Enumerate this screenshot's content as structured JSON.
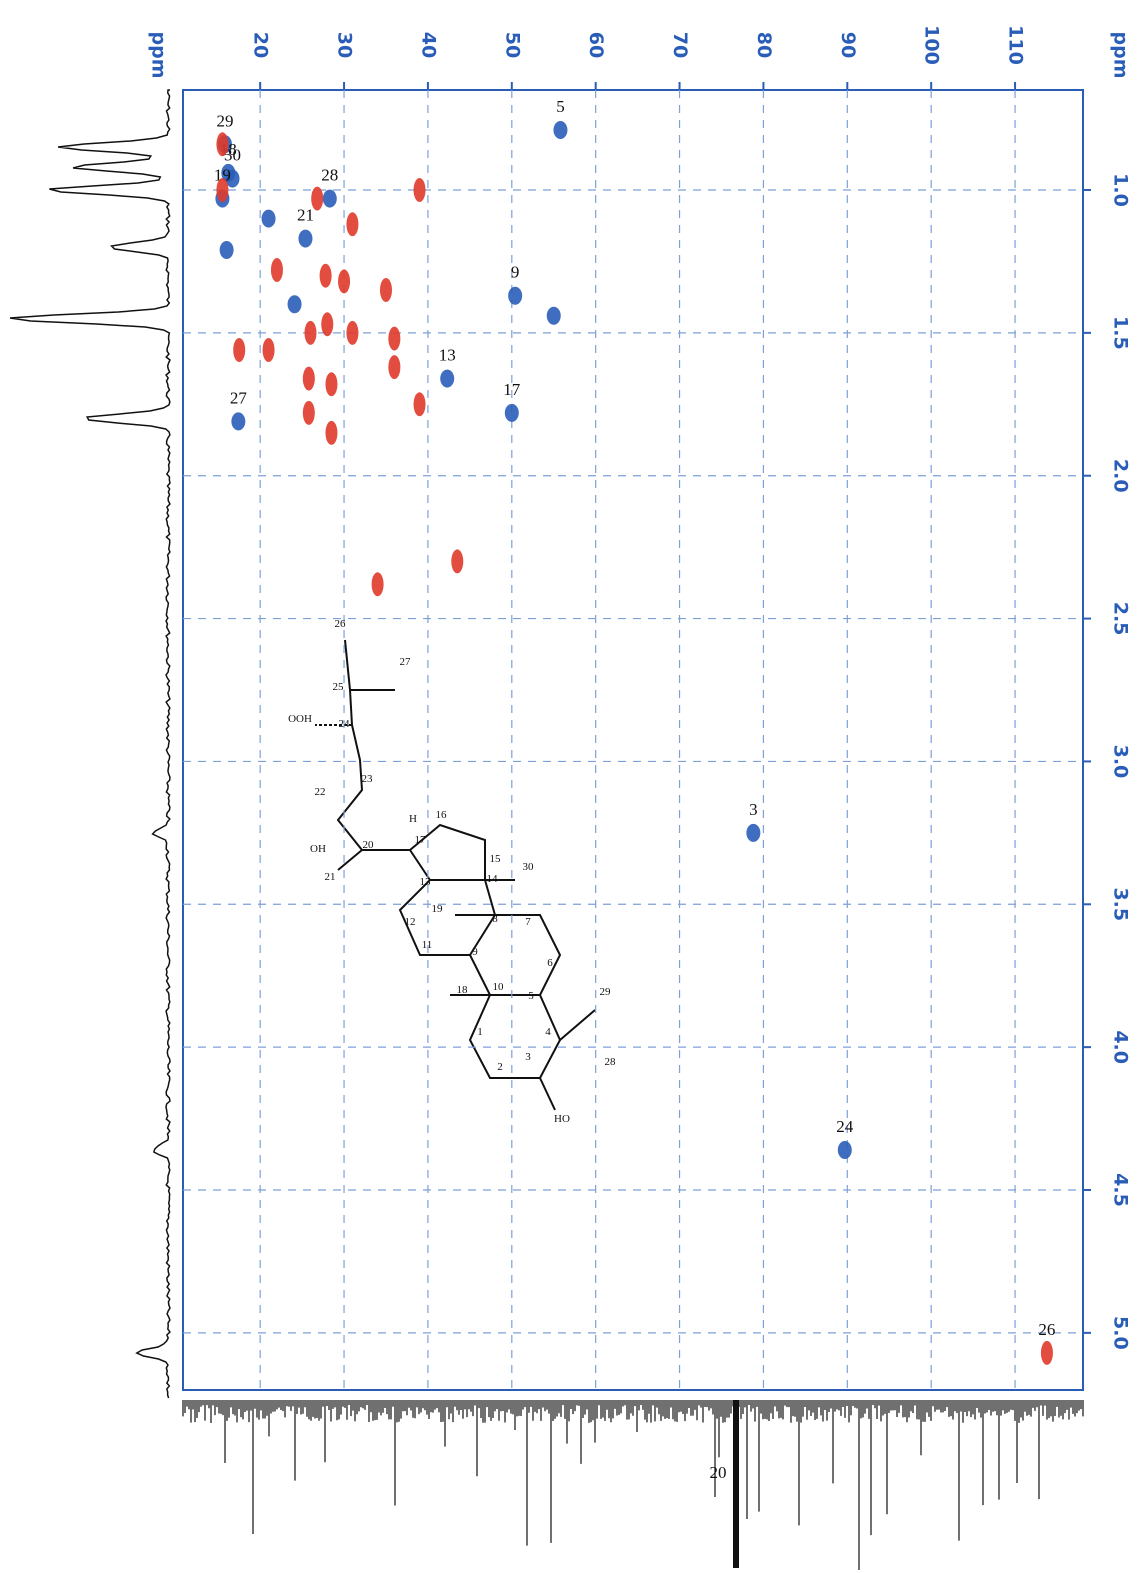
{
  "chart_data": {
    "type": "scatter",
    "x_axis_label": "ppm",
    "y_axis_label": "ppm",
    "xlim": [
      10.8,
      118.1
    ],
    "xticks": [
      20,
      30,
      40,
      50,
      60,
      70,
      80,
      90,
      100,
      110
    ],
    "ylim": [
      0.65,
      5.2
    ],
    "yticks": [
      {
        "value": 1,
        "label": "1.0"
      },
      1.5,
      {
        "value": 2,
        "label": "2.0"
      },
      2.5,
      {
        "value": 3,
        "label": "3.0"
      },
      3.5,
      {
        "value": 4,
        "label": "4.0"
      },
      4.5,
      {
        "value": 5,
        "label": "5.0"
      }
    ],
    "grid": true,
    "series": [
      {
        "color": "#2a5db8",
        "x": [
          55.8,
          15.8,
          16.2,
          16.7,
          15.5,
          28.3,
          25.4,
          50.4,
          42.3,
          50.0,
          17.4,
          78.8,
          89.7,
          21.0,
          24.1,
          55.0,
          16.0
        ],
        "values": [
          0.79,
          0.84,
          0.94,
          0.96,
          1.03,
          1.03,
          1.17,
          1.37,
          1.66,
          1.78,
          1.81,
          3.25,
          4.36,
          1.1,
          1.4,
          1.44,
          1.21
        ],
        "labels": [
          "5",
          "29",
          "18",
          "30",
          "19",
          "28",
          "21",
          "9",
          "13",
          "17",
          "27",
          "3",
          "24",
          null,
          null,
          null,
          null
        ]
      },
      {
        "color": "#e03a2a",
        "x": [
          113.8,
          15.5,
          15.5,
          26.8,
          39.0,
          31.0,
          22.0,
          27.8,
          30.0,
          35.0,
          26.0,
          28.0,
          31.0,
          36.0,
          17.5,
          21.0,
          25.8,
          28.5,
          36.0,
          39.0,
          28.5,
          43.5,
          34.0,
          25.8
        ],
        "values": [
          5.07,
          0.84,
          1.0,
          1.03,
          1.0,
          1.12,
          1.28,
          1.3,
          1.32,
          1.35,
          1.5,
          1.47,
          1.5,
          1.52,
          1.56,
          1.56,
          1.66,
          1.68,
          1.62,
          1.75,
          1.85,
          2.3,
          2.38,
          1.78
        ],
        "labels": [
          "26",
          null,
          null,
          null,
          null,
          null,
          null,
          null,
          null,
          null,
          null,
          null,
          null,
          null,
          null,
          null,
          null,
          null,
          null,
          null,
          null,
          null,
          null,
          null
        ]
      }
    ],
    "annotations": [
      "20"
    ]
  },
  "structure": {
    "atoms": [
      "26",
      "25",
      "27",
      "24",
      "23",
      "22",
      "20",
      "21",
      "17",
      "16",
      "15",
      "13",
      "14",
      "30",
      "12",
      "19",
      "8",
      "7",
      "11",
      "9",
      "6",
      "18",
      "10",
      "5",
      "29",
      "1",
      "4",
      "2",
      "3",
      "28"
    ],
    "groups": [
      "OOH",
      "OH",
      "H",
      "HO"
    ]
  }
}
